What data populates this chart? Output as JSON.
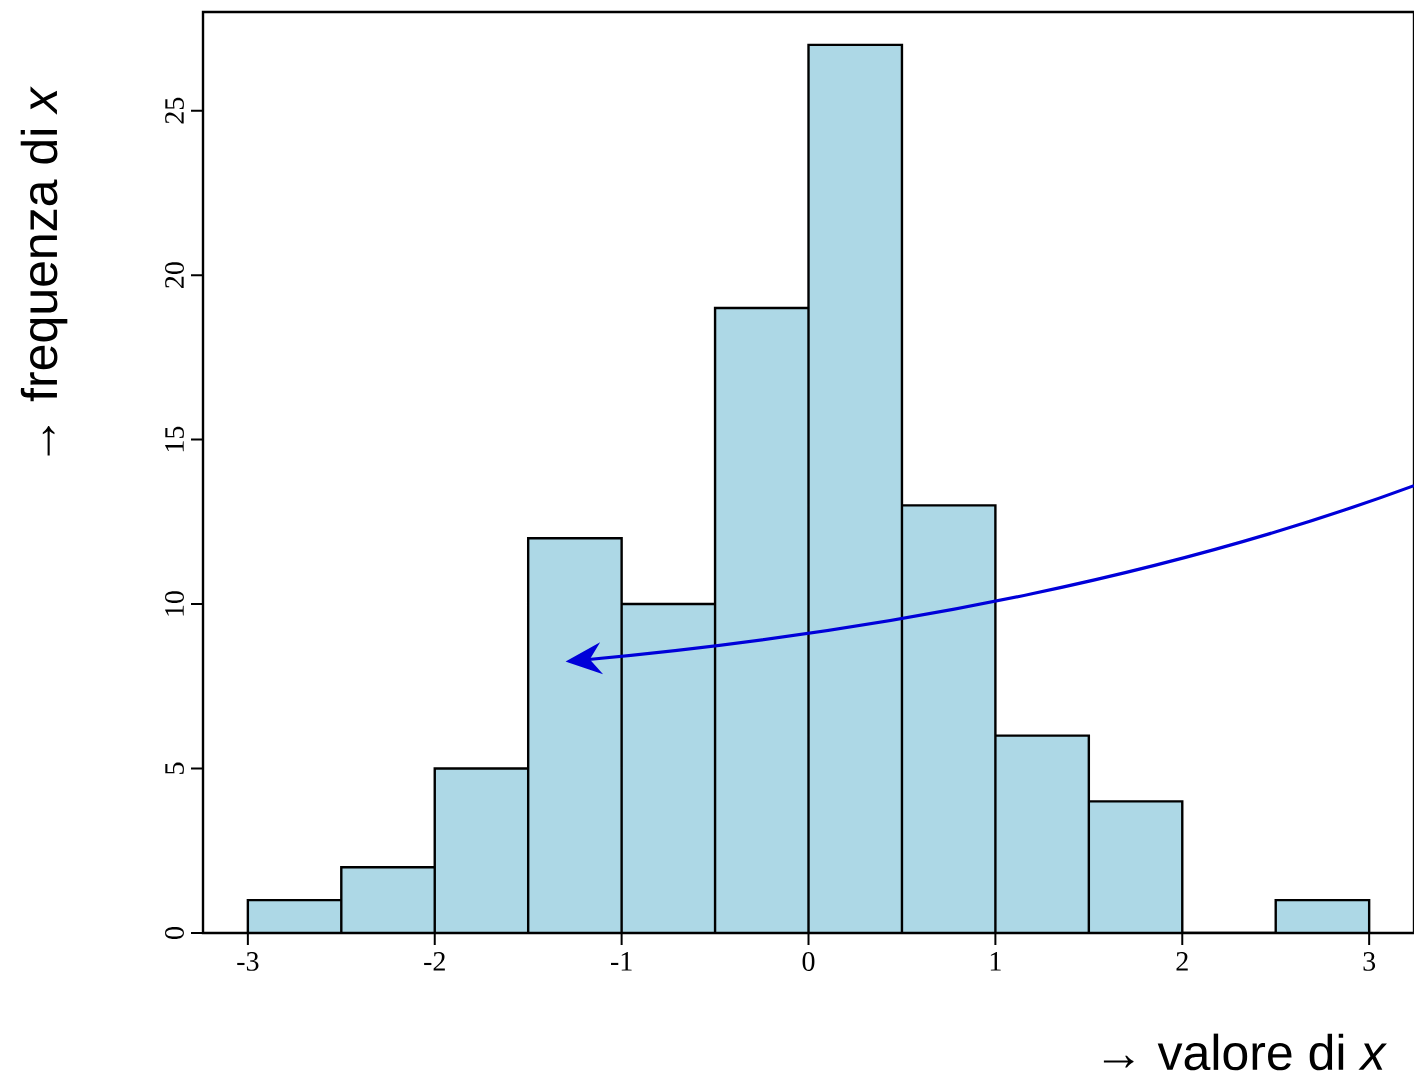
{
  "chart_data": {
    "type": "histogram",
    "xlabel": "→ valore di *x*",
    "ylabel": "→ frequenza di *x*",
    "bins": [
      -3,
      -2.5,
      -2,
      -1.5,
      -1,
      -0.5,
      0,
      0.5,
      1,
      1.5,
      2,
      2.5,
      3
    ],
    "values": [
      1,
      2,
      5,
      12,
      10,
      19,
      27,
      13,
      6,
      4,
      0,
      1
    ],
    "color": "#add8e6",
    "xlim": [
      -3.24,
      3.24
    ],
    "ylim": [
      0,
      28
    ],
    "xticks": [
      -3,
      -2,
      -1,
      0,
      1,
      2,
      3
    ],
    "yticks": [
      0,
      5,
      10,
      15,
      20,
      25
    ]
  }
}
